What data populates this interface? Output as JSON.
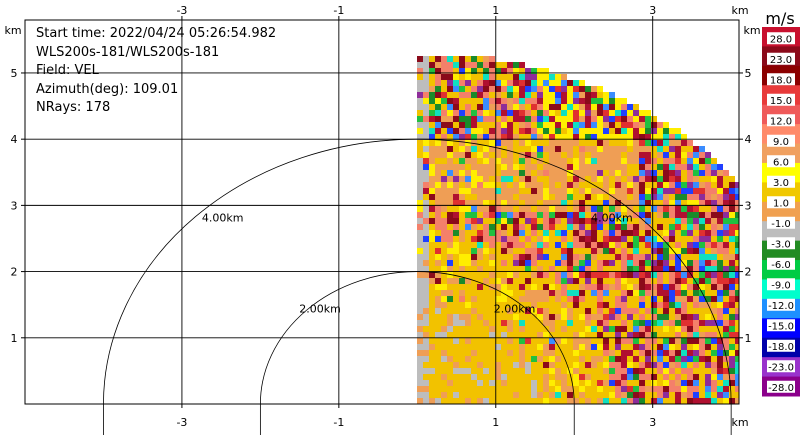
{
  "chart_data": {
    "type": "heatmap",
    "subtype": "radar-ppi",
    "info": {
      "start_time": "Start time: 2022/04/24 05:26:54.982",
      "instrument": "WLS200s-181/WLS200s-181",
      "field": "Field: VEL",
      "azimuth": "Azimuth(deg): 109.01",
      "nrays": "NRays: 178"
    },
    "x_unit": "km",
    "y_unit": "km",
    "xlim": [
      -5,
      4.1
    ],
    "ylim": [
      0,
      5.8
    ],
    "x_ticks": [
      -3,
      -1,
      1,
      3
    ],
    "y_ticks": [
      1,
      2,
      3,
      4,
      5
    ],
    "range_rings": [
      {
        "radius_km": 2.0,
        "label": "2.00km"
      },
      {
        "radius_km": 4.0,
        "label": "4.00km"
      }
    ],
    "sector_max_range_km": 5.3,
    "colorbar": {
      "unit": "m/s",
      "labels": [
        "28.0",
        "23.0",
        "18.0",
        "15.0",
        "12.0",
        "9.0",
        "6.0",
        "3.0",
        "1.0",
        "-1.0",
        "-3.0",
        "-6.0",
        "-9.0",
        "-12.0",
        "-15.0",
        "-18.0",
        "-23.0",
        "-28.0"
      ],
      "colors": [
        "#c8102e",
        "#8b0a1a",
        "#8b0000",
        "#e83a3a",
        "#ef5a5a",
        "#ff8a6a",
        "#f0a060",
        "#ffff00",
        "#f0c800",
        "#f0a050",
        "#bdbdbd",
        "#228b22",
        "#00cc44",
        "#00ffcc",
        "#1e90ff",
        "#0000ff",
        "#0000aa",
        "#9932cc",
        "#8b008b"
      ]
    }
  }
}
